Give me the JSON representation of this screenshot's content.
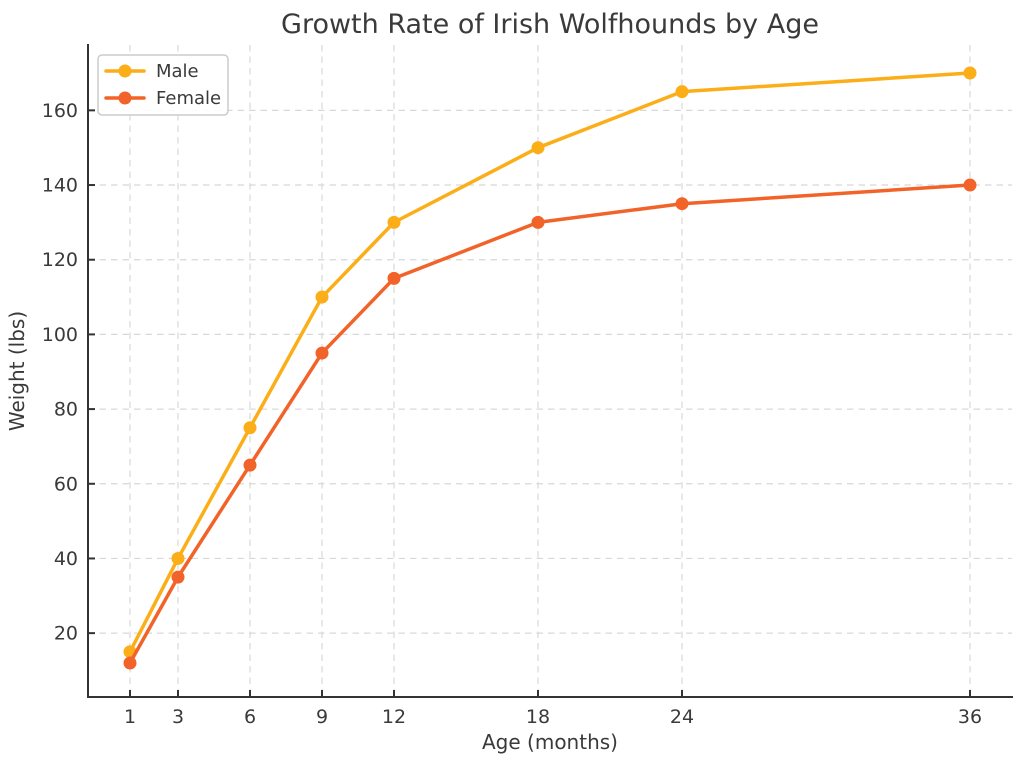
{
  "chart_data": {
    "type": "line",
    "title": "Growth Rate of Irish Wolfhounds by Age",
    "xlabel": "Age (months)",
    "ylabel": "Weight (lbs)",
    "x": [
      1,
      3,
      6,
      9,
      12,
      18,
      24,
      36
    ],
    "series": [
      {
        "name": "Male",
        "color": "#FBAE17",
        "values": [
          15,
          40,
          75,
          110,
          130,
          150,
          165,
          170
        ]
      },
      {
        "name": "Female",
        "color": "#F2632A",
        "values": [
          12,
          35,
          65,
          95,
          115,
          130,
          135,
          140
        ]
      }
    ],
    "xticks": [
      1,
      3,
      6,
      9,
      12,
      18,
      24,
      36
    ],
    "yticks": [
      20,
      40,
      60,
      80,
      100,
      120,
      140,
      160
    ],
    "xlim": [
      -0.75,
      37.75
    ],
    "ylim": [
      2.9,
      177.5
    ],
    "grid": true,
    "grid_style": "dashed",
    "tick_direction": "in",
    "legend_position": "upper left",
    "style": {
      "text_color": "#3a3a3a",
      "grid_color": "#d8d8d8",
      "spine_color": "#333333",
      "legend_border": "#cccccc",
      "legend_background": "#ffffff"
    }
  }
}
